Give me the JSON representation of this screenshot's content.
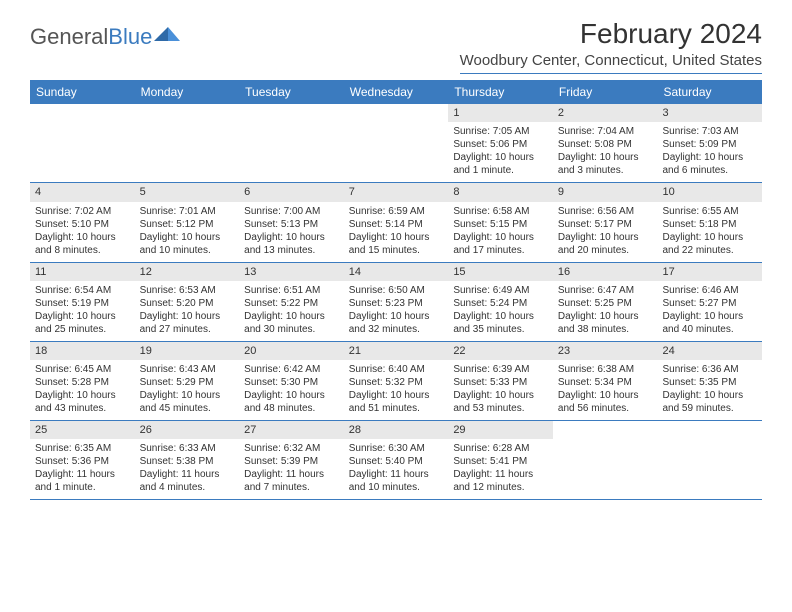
{
  "brand": {
    "part1": "General",
    "part2": "Blue"
  },
  "title": "February 2024",
  "location": "Woodbury Center, Connecticut, United States",
  "colors": {
    "accent": "#3b7bbf",
    "daynum_bg": "#e8e8e8",
    "text": "#333333",
    "background": "#ffffff"
  },
  "dow": [
    "Sunday",
    "Monday",
    "Tuesday",
    "Wednesday",
    "Thursday",
    "Friday",
    "Saturday"
  ],
  "weeks": [
    [
      {
        "n": "",
        "sr": "",
        "ss": "",
        "dl": ""
      },
      {
        "n": "",
        "sr": "",
        "ss": "",
        "dl": ""
      },
      {
        "n": "",
        "sr": "",
        "ss": "",
        "dl": ""
      },
      {
        "n": "",
        "sr": "",
        "ss": "",
        "dl": ""
      },
      {
        "n": "1",
        "sr": "Sunrise: 7:05 AM",
        "ss": "Sunset: 5:06 PM",
        "dl": "Daylight: 10 hours and 1 minute."
      },
      {
        "n": "2",
        "sr": "Sunrise: 7:04 AM",
        "ss": "Sunset: 5:08 PM",
        "dl": "Daylight: 10 hours and 3 minutes."
      },
      {
        "n": "3",
        "sr": "Sunrise: 7:03 AM",
        "ss": "Sunset: 5:09 PM",
        "dl": "Daylight: 10 hours and 6 minutes."
      }
    ],
    [
      {
        "n": "4",
        "sr": "Sunrise: 7:02 AM",
        "ss": "Sunset: 5:10 PM",
        "dl": "Daylight: 10 hours and 8 minutes."
      },
      {
        "n": "5",
        "sr": "Sunrise: 7:01 AM",
        "ss": "Sunset: 5:12 PM",
        "dl": "Daylight: 10 hours and 10 minutes."
      },
      {
        "n": "6",
        "sr": "Sunrise: 7:00 AM",
        "ss": "Sunset: 5:13 PM",
        "dl": "Daylight: 10 hours and 13 minutes."
      },
      {
        "n": "7",
        "sr": "Sunrise: 6:59 AM",
        "ss": "Sunset: 5:14 PM",
        "dl": "Daylight: 10 hours and 15 minutes."
      },
      {
        "n": "8",
        "sr": "Sunrise: 6:58 AM",
        "ss": "Sunset: 5:15 PM",
        "dl": "Daylight: 10 hours and 17 minutes."
      },
      {
        "n": "9",
        "sr": "Sunrise: 6:56 AM",
        "ss": "Sunset: 5:17 PM",
        "dl": "Daylight: 10 hours and 20 minutes."
      },
      {
        "n": "10",
        "sr": "Sunrise: 6:55 AM",
        "ss": "Sunset: 5:18 PM",
        "dl": "Daylight: 10 hours and 22 minutes."
      }
    ],
    [
      {
        "n": "11",
        "sr": "Sunrise: 6:54 AM",
        "ss": "Sunset: 5:19 PM",
        "dl": "Daylight: 10 hours and 25 minutes."
      },
      {
        "n": "12",
        "sr": "Sunrise: 6:53 AM",
        "ss": "Sunset: 5:20 PM",
        "dl": "Daylight: 10 hours and 27 minutes."
      },
      {
        "n": "13",
        "sr": "Sunrise: 6:51 AM",
        "ss": "Sunset: 5:22 PM",
        "dl": "Daylight: 10 hours and 30 minutes."
      },
      {
        "n": "14",
        "sr": "Sunrise: 6:50 AM",
        "ss": "Sunset: 5:23 PM",
        "dl": "Daylight: 10 hours and 32 minutes."
      },
      {
        "n": "15",
        "sr": "Sunrise: 6:49 AM",
        "ss": "Sunset: 5:24 PM",
        "dl": "Daylight: 10 hours and 35 minutes."
      },
      {
        "n": "16",
        "sr": "Sunrise: 6:47 AM",
        "ss": "Sunset: 5:25 PM",
        "dl": "Daylight: 10 hours and 38 minutes."
      },
      {
        "n": "17",
        "sr": "Sunrise: 6:46 AM",
        "ss": "Sunset: 5:27 PM",
        "dl": "Daylight: 10 hours and 40 minutes."
      }
    ],
    [
      {
        "n": "18",
        "sr": "Sunrise: 6:45 AM",
        "ss": "Sunset: 5:28 PM",
        "dl": "Daylight: 10 hours and 43 minutes."
      },
      {
        "n": "19",
        "sr": "Sunrise: 6:43 AM",
        "ss": "Sunset: 5:29 PM",
        "dl": "Daylight: 10 hours and 45 minutes."
      },
      {
        "n": "20",
        "sr": "Sunrise: 6:42 AM",
        "ss": "Sunset: 5:30 PM",
        "dl": "Daylight: 10 hours and 48 minutes."
      },
      {
        "n": "21",
        "sr": "Sunrise: 6:40 AM",
        "ss": "Sunset: 5:32 PM",
        "dl": "Daylight: 10 hours and 51 minutes."
      },
      {
        "n": "22",
        "sr": "Sunrise: 6:39 AM",
        "ss": "Sunset: 5:33 PM",
        "dl": "Daylight: 10 hours and 53 minutes."
      },
      {
        "n": "23",
        "sr": "Sunrise: 6:38 AM",
        "ss": "Sunset: 5:34 PM",
        "dl": "Daylight: 10 hours and 56 minutes."
      },
      {
        "n": "24",
        "sr": "Sunrise: 6:36 AM",
        "ss": "Sunset: 5:35 PM",
        "dl": "Daylight: 10 hours and 59 minutes."
      }
    ],
    [
      {
        "n": "25",
        "sr": "Sunrise: 6:35 AM",
        "ss": "Sunset: 5:36 PM",
        "dl": "Daylight: 11 hours and 1 minute."
      },
      {
        "n": "26",
        "sr": "Sunrise: 6:33 AM",
        "ss": "Sunset: 5:38 PM",
        "dl": "Daylight: 11 hours and 4 minutes."
      },
      {
        "n": "27",
        "sr": "Sunrise: 6:32 AM",
        "ss": "Sunset: 5:39 PM",
        "dl": "Daylight: 11 hours and 7 minutes."
      },
      {
        "n": "28",
        "sr": "Sunrise: 6:30 AM",
        "ss": "Sunset: 5:40 PM",
        "dl": "Daylight: 11 hours and 10 minutes."
      },
      {
        "n": "29",
        "sr": "Sunrise: 6:28 AM",
        "ss": "Sunset: 5:41 PM",
        "dl": "Daylight: 11 hours and 12 minutes."
      },
      {
        "n": "",
        "sr": "",
        "ss": "",
        "dl": ""
      },
      {
        "n": "",
        "sr": "",
        "ss": "",
        "dl": ""
      }
    ]
  ]
}
